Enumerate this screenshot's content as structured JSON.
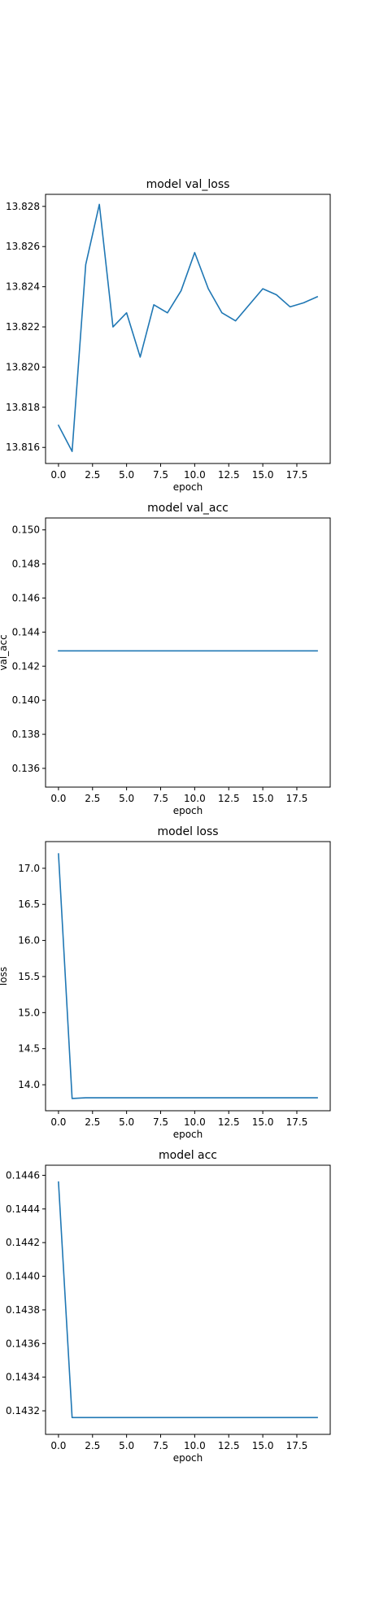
{
  "figure": {
    "line_color": "#1f77b4",
    "axis_color": "#000000",
    "background": "#ffffff"
  },
  "chart_data": [
    {
      "type": "line",
      "title": "model val_loss",
      "xlabel": "epoch",
      "ylabel": "",
      "xlim": [
        -0.95,
        19.95
      ],
      "ylim": [
        13.8152,
        13.8286
      ],
      "xticks": [
        0.0,
        2.5,
        5.0,
        7.5,
        10.0,
        12.5,
        15.0,
        17.5
      ],
      "xtick_labels": [
        "0.0",
        "2.5",
        "5.0",
        "7.5",
        "10.0",
        "12.5",
        "15.0",
        "17.5"
      ],
      "yticks": [
        13.816,
        13.818,
        13.82,
        13.822,
        13.824,
        13.826,
        13.828
      ],
      "ytick_labels": [
        "13.816",
        "13.818",
        "13.820",
        "13.822",
        "13.824",
        "13.826",
        "13.828"
      ],
      "grid": false,
      "legend": false,
      "x": [
        0,
        1,
        2,
        3,
        4,
        5,
        6,
        7,
        8,
        9,
        10,
        11,
        12,
        13,
        14,
        15,
        16,
        17,
        18,
        19
      ],
      "series": [
        {
          "name": "",
          "values": [
            13.8171,
            13.8158,
            13.8251,
            13.8281,
            13.822,
            13.8227,
            13.8205,
            13.8231,
            13.8227,
            13.8238,
            13.8257,
            13.8239,
            13.8227,
            13.8223,
            13.8231,
            13.8239,
            13.8236,
            13.823,
            13.8232,
            13.8235
          ]
        }
      ]
    },
    {
      "type": "line",
      "title": "model val_acc",
      "xlabel": "epoch",
      "ylabel": "val_acc",
      "xlim": [
        -0.95,
        19.95
      ],
      "ylim": [
        0.1349,
        0.1507
      ],
      "xticks": [
        0.0,
        2.5,
        5.0,
        7.5,
        10.0,
        12.5,
        15.0,
        17.5
      ],
      "xtick_labels": [
        "0.0",
        "2.5",
        "5.0",
        "7.5",
        "10.0",
        "12.5",
        "15.0",
        "17.5"
      ],
      "yticks": [
        0.136,
        0.138,
        0.14,
        0.142,
        0.144,
        0.146,
        0.148,
        0.15
      ],
      "ytick_labels": [
        "0.136",
        "0.138",
        "0.140",
        "0.142",
        "0.144",
        "0.146",
        "0.148",
        "0.150"
      ],
      "grid": false,
      "legend": false,
      "x": [
        0,
        1,
        2,
        3,
        4,
        5,
        6,
        7,
        8,
        9,
        10,
        11,
        12,
        13,
        14,
        15,
        16,
        17,
        18,
        19
      ],
      "series": [
        {
          "name": "",
          "values": [
            0.1429,
            0.1429,
            0.1429,
            0.1429,
            0.1429,
            0.1429,
            0.1429,
            0.1429,
            0.1429,
            0.1429,
            0.1429,
            0.1429,
            0.1429,
            0.1429,
            0.1429,
            0.1429,
            0.1429,
            0.1429,
            0.1429,
            0.1429
          ]
        }
      ]
    },
    {
      "type": "line",
      "title": "model loss",
      "xlabel": "epoch",
      "ylabel": "loss",
      "xlim": [
        -0.95,
        19.95
      ],
      "ylim": [
        13.64,
        17.37
      ],
      "xticks": [
        0.0,
        2.5,
        5.0,
        7.5,
        10.0,
        12.5,
        15.0,
        17.5
      ],
      "xtick_labels": [
        "0.0",
        "2.5",
        "5.0",
        "7.5",
        "10.0",
        "12.5",
        "15.0",
        "17.5"
      ],
      "yticks": [
        14.0,
        14.5,
        15.0,
        15.5,
        16.0,
        16.5,
        17.0
      ],
      "ytick_labels": [
        "14.0",
        "14.5",
        "15.0",
        "15.5",
        "16.0",
        "16.5",
        "17.0"
      ],
      "grid": false,
      "legend": false,
      "x": [
        0,
        1,
        2,
        3,
        4,
        5,
        6,
        7,
        8,
        9,
        10,
        11,
        12,
        13,
        14,
        15,
        16,
        17,
        18,
        19
      ],
      "series": [
        {
          "name": "",
          "values": [
            17.2,
            13.81,
            13.82,
            13.82,
            13.82,
            13.82,
            13.82,
            13.82,
            13.82,
            13.82,
            13.82,
            13.82,
            13.82,
            13.82,
            13.82,
            13.82,
            13.82,
            13.82,
            13.82,
            13.82
          ]
        }
      ]
    },
    {
      "type": "line",
      "title": "model acc",
      "xlabel": "epoch",
      "ylabel": "",
      "xlim": [
        -0.95,
        19.95
      ],
      "ylim": [
        0.14306,
        0.14466
      ],
      "xticks": [
        0.0,
        2.5,
        5.0,
        7.5,
        10.0,
        12.5,
        15.0,
        17.5
      ],
      "xtick_labels": [
        "0.0",
        "2.5",
        "5.0",
        "7.5",
        "10.0",
        "12.5",
        "15.0",
        "17.5"
      ],
      "yticks": [
        0.1432,
        0.1434,
        0.1436,
        0.1438,
        0.144,
        0.1442,
        0.1444,
        0.1446
      ],
      "ytick_labels": [
        "0.1432",
        "0.1434",
        "0.1436",
        "0.1438",
        "0.1440",
        "0.1442",
        "0.1444",
        "0.1446"
      ],
      "grid": false,
      "legend": false,
      "x": [
        0,
        1,
        2,
        3,
        4,
        5,
        6,
        7,
        8,
        9,
        10,
        11,
        12,
        13,
        14,
        15,
        16,
        17,
        18,
        19
      ],
      "series": [
        {
          "name": "",
          "values": [
            0.14456,
            0.14316,
            0.14316,
            0.14316,
            0.14316,
            0.14316,
            0.14316,
            0.14316,
            0.14316,
            0.14316,
            0.14316,
            0.14316,
            0.14316,
            0.14316,
            0.14316,
            0.14316,
            0.14316,
            0.14316,
            0.14316,
            0.14316
          ]
        }
      ]
    }
  ]
}
